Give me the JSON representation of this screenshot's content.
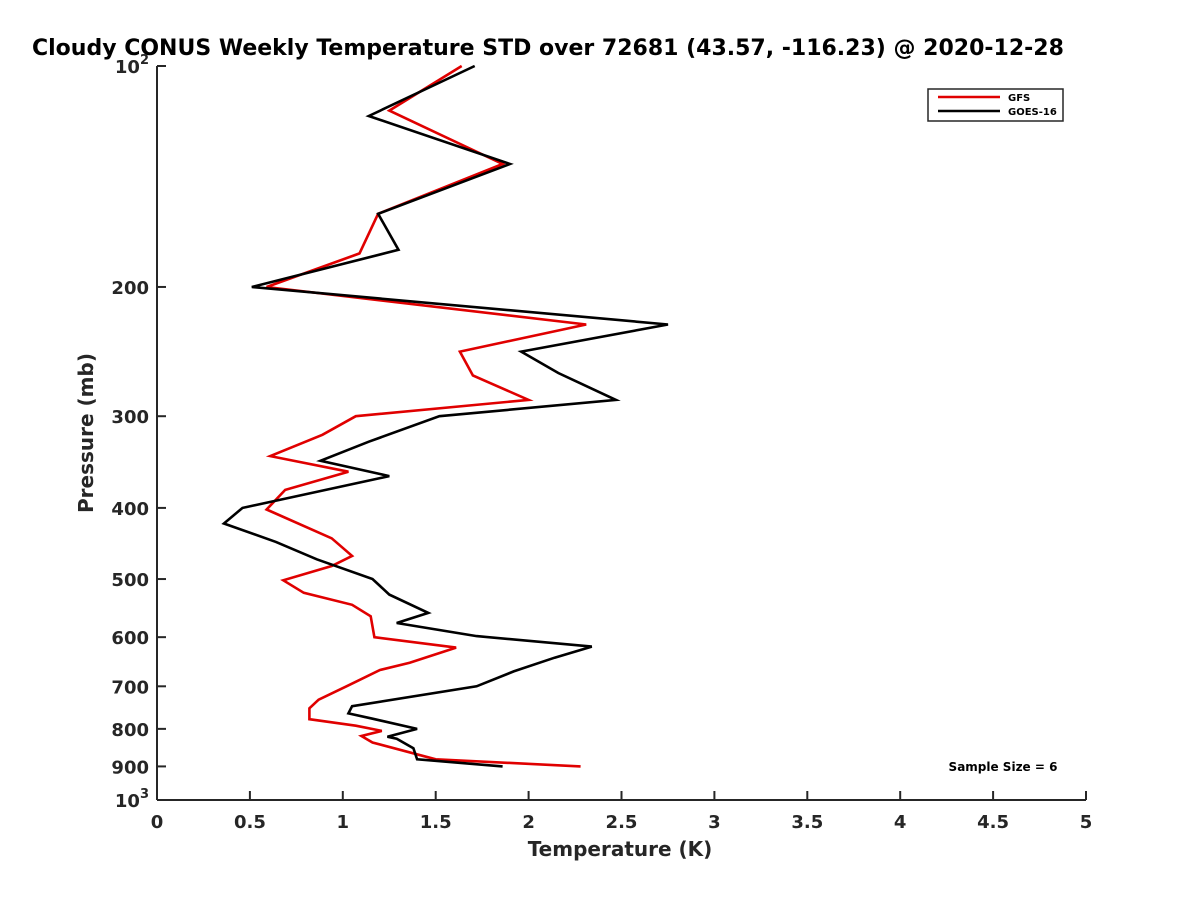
{
  "chart_data": {
    "type": "line",
    "title": "Cloudy CONUS Weekly Temperature STD over 72681 (43.57, -116.23) @ 2020-12-28",
    "xlabel": "Temperature (K)",
    "ylabel": "Pressure (mb)",
    "xlim": [
      0,
      5
    ],
    "ylim": [
      100,
      1000
    ],
    "y_scale": "log",
    "y_reversed": true,
    "x_ticks": [
      {
        "value": 0,
        "label": "0"
      },
      {
        "value": 0.5,
        "label": "0.5"
      },
      {
        "value": 1,
        "label": "1"
      },
      {
        "value": 1.5,
        "label": "1.5"
      },
      {
        "value": 2,
        "label": "2"
      },
      {
        "value": 2.5,
        "label": "2.5"
      },
      {
        "value": 3,
        "label": "3"
      },
      {
        "value": 3.5,
        "label": "3.5"
      },
      {
        "value": 4,
        "label": "4"
      },
      {
        "value": 4.5,
        "label": "4.5"
      },
      {
        "value": 5,
        "label": "5"
      }
    ],
    "y_ticks": [
      {
        "value": 100,
        "label": "10",
        "sup": "2"
      },
      {
        "value": 200,
        "label": "200",
        "sup": ""
      },
      {
        "value": 300,
        "label": "300",
        "sup": ""
      },
      {
        "value": 400,
        "label": "400",
        "sup": ""
      },
      {
        "value": 500,
        "label": "500",
        "sup": ""
      },
      {
        "value": 600,
        "label": "600",
        "sup": ""
      },
      {
        "value": 700,
        "label": "700",
        "sup": ""
      },
      {
        "value": 800,
        "label": "800",
        "sup": ""
      },
      {
        "value": 900,
        "label": "900",
        "sup": ""
      },
      {
        "value": 1000,
        "label": "10",
        "sup": "3"
      }
    ],
    "grid": false,
    "legend_position": "top-right",
    "series": [
      {
        "name": "GFS",
        "color": "#e00000",
        "points": [
          {
            "x": 1.64,
            "y": 100
          },
          {
            "x": 1.25,
            "y": 115
          },
          {
            "x": 1.86,
            "y": 136
          },
          {
            "x": 1.19,
            "y": 159
          },
          {
            "x": 1.09,
            "y": 180
          },
          {
            "x": 0.59,
            "y": 200
          },
          {
            "x": 2.31,
            "y": 225
          },
          {
            "x": 1.63,
            "y": 245
          },
          {
            "x": 1.7,
            "y": 264
          },
          {
            "x": 2.0,
            "y": 285
          },
          {
            "x": 1.07,
            "y": 300
          },
          {
            "x": 0.89,
            "y": 318
          },
          {
            "x": 0.61,
            "y": 340
          },
          {
            "x": 1.03,
            "y": 357
          },
          {
            "x": 0.69,
            "y": 378
          },
          {
            "x": 0.59,
            "y": 402
          },
          {
            "x": 0.94,
            "y": 440
          },
          {
            "x": 1.05,
            "y": 465
          },
          {
            "x": 0.94,
            "y": 480
          },
          {
            "x": 0.68,
            "y": 502
          },
          {
            "x": 0.79,
            "y": 522
          },
          {
            "x": 1.05,
            "y": 542
          },
          {
            "x": 1.15,
            "y": 562
          },
          {
            "x": 1.17,
            "y": 600
          },
          {
            "x": 1.61,
            "y": 620
          },
          {
            "x": 1.36,
            "y": 650
          },
          {
            "x": 1.2,
            "y": 665
          },
          {
            "x": 1.02,
            "y": 700
          },
          {
            "x": 0.87,
            "y": 730
          },
          {
            "x": 0.82,
            "y": 750
          },
          {
            "x": 0.82,
            "y": 776
          },
          {
            "x": 1.07,
            "y": 792
          },
          {
            "x": 1.21,
            "y": 805
          },
          {
            "x": 1.1,
            "y": 818
          },
          {
            "x": 1.16,
            "y": 835
          },
          {
            "x": 1.5,
            "y": 880
          },
          {
            "x": 2.28,
            "y": 900
          }
        ]
      },
      {
        "name": "GOES-16",
        "color": "#000000",
        "points": [
          {
            "x": 1.71,
            "y": 100
          },
          {
            "x": 1.14,
            "y": 117
          },
          {
            "x": 1.9,
            "y": 136
          },
          {
            "x": 1.19,
            "y": 159
          },
          {
            "x": 1.3,
            "y": 178
          },
          {
            "x": 0.51,
            "y": 200
          },
          {
            "x": 2.75,
            "y": 225
          },
          {
            "x": 1.96,
            "y": 245
          },
          {
            "x": 2.16,
            "y": 262
          },
          {
            "x": 2.47,
            "y": 285
          },
          {
            "x": 1.52,
            "y": 300
          },
          {
            "x": 1.14,
            "y": 325
          },
          {
            "x": 0.88,
            "y": 345
          },
          {
            "x": 1.25,
            "y": 362
          },
          {
            "x": 0.46,
            "y": 400
          },
          {
            "x": 0.36,
            "y": 420
          },
          {
            "x": 0.64,
            "y": 445
          },
          {
            "x": 0.86,
            "y": 470
          },
          {
            "x": 1.16,
            "y": 500
          },
          {
            "x": 1.25,
            "y": 525
          },
          {
            "x": 1.46,
            "y": 556
          },
          {
            "x": 1.29,
            "y": 574
          },
          {
            "x": 1.72,
            "y": 598
          },
          {
            "x": 2.34,
            "y": 618
          },
          {
            "x": 2.14,
            "y": 640
          },
          {
            "x": 1.92,
            "y": 668
          },
          {
            "x": 1.72,
            "y": 700
          },
          {
            "x": 1.05,
            "y": 745
          },
          {
            "x": 1.03,
            "y": 762
          },
          {
            "x": 1.16,
            "y": 775
          },
          {
            "x": 1.4,
            "y": 800
          },
          {
            "x": 1.24,
            "y": 820
          },
          {
            "x": 1.29,
            "y": 825
          },
          {
            "x": 1.38,
            "y": 850
          },
          {
            "x": 1.4,
            "y": 880
          },
          {
            "x": 1.86,
            "y": 900
          }
        ]
      }
    ],
    "annotations": [
      {
        "text": "Sample Size = 6"
      }
    ]
  }
}
